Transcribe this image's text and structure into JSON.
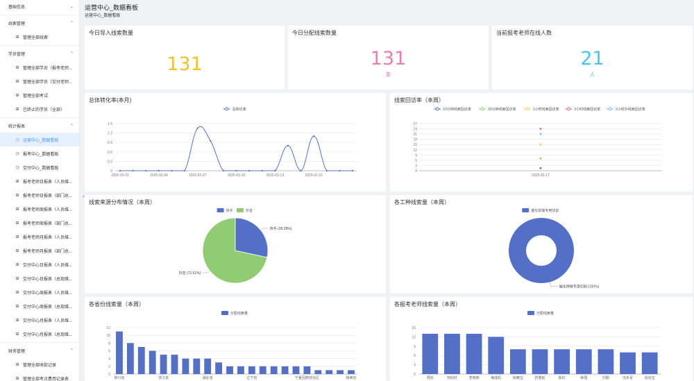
{
  "colors": {
    "yellow": "#f2c12e",
    "pink": "#e97bb5",
    "cyan": "#45c7e6",
    "blue": "#5470c6",
    "green": "#91cc75",
    "active_bg": "#e6f0ff",
    "active_fg": "#409eff"
  },
  "sidebar": {
    "groups": [
      {
        "label": "基础信息",
        "chevron": "⌄"
      },
      {
        "label": "线索管理",
        "chevron": "⌃"
      },
      {
        "label": "学员管理",
        "chevron": "⌃"
      },
      {
        "label": "统计报表",
        "chevron": "⌃"
      },
      {
        "label": "财务管理",
        "chevron": "⌃"
      }
    ],
    "clue_items": [
      "管理全部线索"
    ],
    "student_items": [
      "管理全部学员（报考老师...",
      "管理全部学员（交付老师...",
      "管理全部考试",
      "已终止的学员（全部）"
    ],
    "report_items": [
      "运营中心_数据看板",
      "报考中心_数据看板",
      "交付中心_数据看板",
      "报考老师日报表（人员维...",
      "报考老师日报表（部门总...",
      "报考老师周报表（人员维...",
      "报考老师周报表（部门总...",
      "报考老师月报表（人员维...",
      "报考老师月报表（部门总...",
      "交付中心日报表（人员维...",
      "交付中心日报表（总现维...",
      "交付中心周报表（人员维...",
      "交付中心周报表（总现维...",
      "交付中心月报表（人员维...",
      "交付中心月报表（总现维..."
    ],
    "finance_items": [
      "管理全部收款记录",
      "管理全部考点费用记录表"
    ]
  },
  "header": {
    "title": "运营中心_数据看板",
    "breadcrumb": "运营中心_数据看板"
  },
  "stats": [
    {
      "title": "今日导入线索数量",
      "value": "131",
      "unit": ""
    },
    {
      "title": "今日分配线索数量",
      "value": "131",
      "unit": "条"
    },
    {
      "title": "当前报考老师在线人数",
      "value": "21",
      "unit": "人"
    }
  ],
  "chart_data": [
    {
      "type": "line",
      "title": "总体转化率(本月)",
      "legend": [
        "总转化率"
      ],
      "x_ticks": [
        "2025-02-01",
        "2025-02-04",
        "2025-02-07",
        "2025-02-10",
        "2025-02-13",
        "2025-02-16"
      ],
      "y_ticks": [
        "0",
        "0.3",
        "0.6",
        "0.9",
        "1.2",
        "1.5"
      ],
      "ylim": [
        0,
        1.5
      ],
      "x": [
        1,
        2,
        3,
        4,
        5,
        6,
        7,
        8,
        9,
        10,
        11,
        12,
        13,
        14,
        15,
        16,
        17,
        18,
        19
      ],
      "values": [
        0,
        0,
        0,
        0,
        0,
        0,
        1.35,
        0.95,
        0,
        0,
        0,
        0,
        0,
        0.8,
        0,
        1.1,
        0,
        0,
        0
      ]
    },
    {
      "type": "scatter",
      "title": "线索回访率（本周）",
      "legend": [
        "10分钟线索回访率",
        "30分钟线索回访率",
        "1小时线索回访率",
        "2小时线索回访率",
        "2小时外线索回访率"
      ],
      "legend_colors": [
        "#5470c6",
        "#91cc75",
        "#fac858",
        "#ee6666",
        "#73c0de"
      ],
      "x_ticks": [
        "2025-02-17"
      ],
      "y_ticks": [
        "0",
        "3",
        "6",
        "9",
        "12",
        "15",
        "18",
        "21",
        "24",
        "27"
      ],
      "ylim": [
        0,
        27
      ],
      "points": [
        {
          "series": 0,
          "y": 1.5
        },
        {
          "series": 1,
          "y": 7
        },
        {
          "series": 2,
          "y": 15
        },
        {
          "series": 3,
          "y": 24
        },
        {
          "series": 4,
          "y": 21
        }
      ]
    },
    {
      "type": "pie",
      "title": "线索来源分布情况（本周）",
      "legend": [
        "快手",
        "抖音"
      ],
      "slices": [
        {
          "name": "快手",
          "value": 28.39,
          "label": "快手 (28.39%)"
        },
        {
          "name": "抖音",
          "value": 71.61,
          "label": "抖音 (71.61%)"
        }
      ]
    },
    {
      "type": "pie",
      "title": "各工种线索量（本周）",
      "legend": [
        "催化焊接专用切割"
      ],
      "slices": [
        {
          "name": "催化焊接专用切割",
          "value": 100,
          "label": "催化焊接专用切割 (100%)"
        }
      ]
    },
    {
      "type": "bar",
      "title": "各省份线索量（本周）",
      "legend": [
        "分配线索量"
      ],
      "y_ticks": [
        "0",
        "2",
        "4",
        "6",
        "8",
        "10",
        "12"
      ],
      "ylim": [
        0,
        12
      ],
      "x_tick_labels": [
        "四川省",
        "浙江省",
        "湖北省",
        "辽宁省",
        "宁夏回族自治区",
        "陕西省"
      ],
      "x_tick_index": [
        0,
        4,
        8,
        12,
        17,
        21
      ],
      "values": [
        11,
        8,
        7,
        6,
        5,
        5,
        4,
        4,
        4,
        3,
        2,
        2,
        2,
        2,
        2,
        2,
        2,
        2,
        1,
        1,
        1,
        1
      ]
    },
    {
      "type": "bar",
      "title": "各报考老师线索量（本周）",
      "legend": [
        "分配线索量"
      ],
      "y_ticks": [
        "0",
        "3",
        "6",
        "9",
        "12",
        "15"
      ],
      "ylim": [
        0,
        15
      ],
      "categories": [
        "周欣",
        "何欣欣",
        "李晓晓",
        "梅成机",
        "徐曦宝",
        "舒重延",
        "陈红",
        "钟瑾",
        "刘勤",
        "冯冬青",
        "肖宗宝"
      ],
      "values": [
        13,
        13,
        13,
        12,
        8,
        8,
        8,
        8,
        8,
        7,
        7
      ]
    }
  ]
}
